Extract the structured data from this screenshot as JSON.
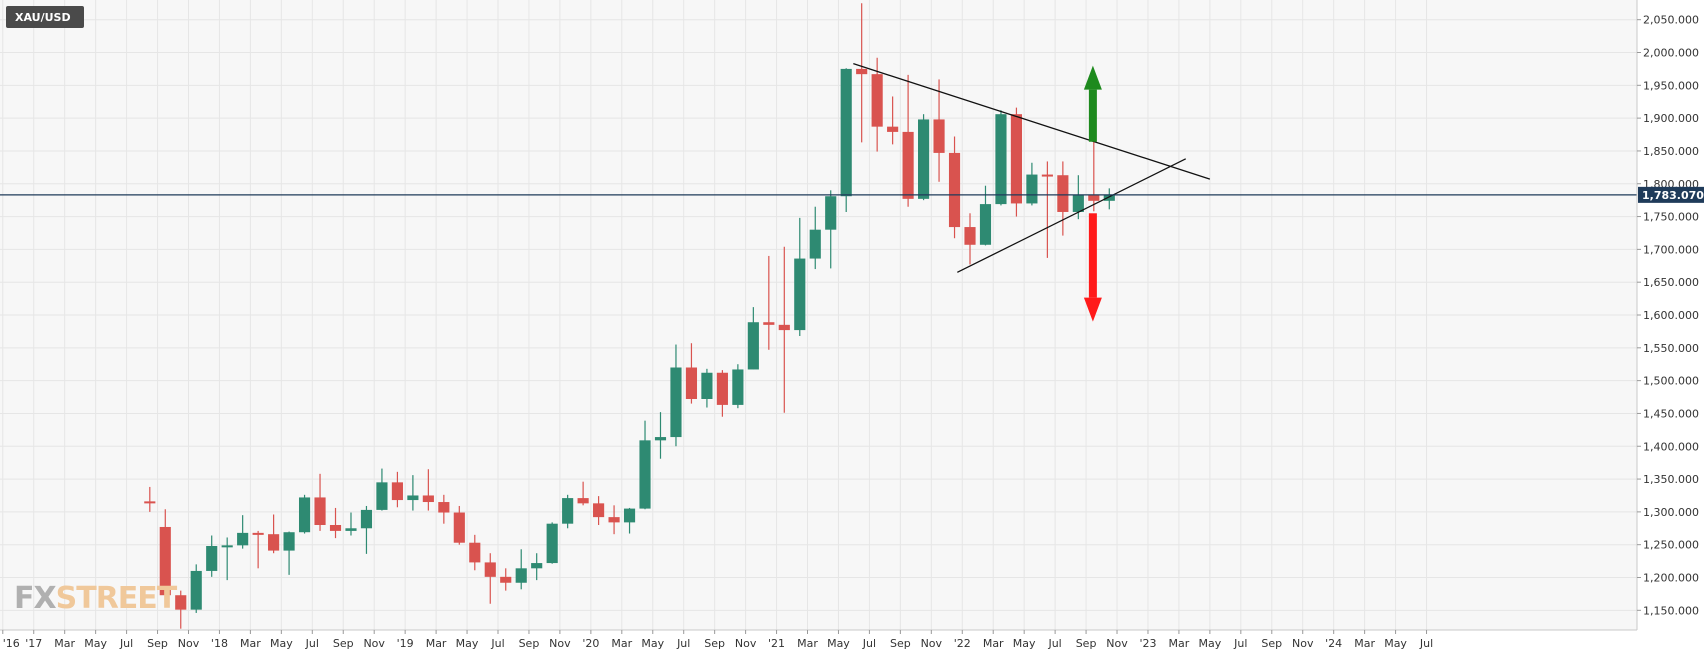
{
  "symbol": "XAU/USD",
  "watermark": {
    "left": "FX",
    "right": "STREET"
  },
  "colors": {
    "up": "#2e8a72",
    "down": "#d9534f",
    "grid": "#e6e6e6",
    "plot_bg": "#f7f7f7",
    "price_line": "#1f3b5a",
    "arrow_up": "#1e8a1e",
    "arrow_down": "#ff1a1a",
    "trendline": "#111111",
    "watermark_left": "#b0b0b0",
    "watermark_right": "#f0c89a"
  },
  "chart_data": {
    "type": "candlestick",
    "title": "XAU/USD",
    "timeframe": "monthly",
    "ylim": [
      1120,
      2080
    ],
    "xlim": [
      2015.985,
      2024.8
    ],
    "y_ticks": [
      "2,050.000",
      "2,000.000",
      "1,950.000",
      "1,900.000",
      "1,850.000",
      "1,800.000",
      "1,750.000",
      "1,700.000",
      "1,650.000",
      "1,600.000",
      "1,550.000",
      "1,500.000",
      "1,450.000",
      "1,400.000",
      "1,350.000",
      "1,300.000",
      "1,250.000",
      "1,200.000",
      "1,150.000"
    ],
    "y_tick_values": [
      2050,
      2000,
      1950,
      1900,
      1850,
      1800,
      1750,
      1700,
      1650,
      1600,
      1550,
      1500,
      1450,
      1400,
      1350,
      1300,
      1250,
      1200,
      1150
    ],
    "x_ticks": [
      "'16",
      "'17",
      "Mar",
      "May",
      "Jul",
      "Sep",
      "Nov",
      "'18",
      "Mar",
      "May",
      "Jul",
      "Sep",
      "Nov",
      "'19",
      "Mar",
      "May",
      "Jul",
      "Sep",
      "Nov",
      "'20",
      "Mar",
      "May",
      "Jul",
      "Sep",
      "Nov",
      "'21",
      "Mar",
      "May",
      "Jul",
      "Sep",
      "Nov",
      "'22",
      "Mar",
      "May",
      "Jul",
      "Sep",
      "Nov",
      "'23",
      "Mar",
      "May",
      "Jul",
      "Sep",
      "Nov",
      "'24",
      "Mar",
      "May",
      "Jul"
    ],
    "current_price": 1783.07,
    "current_price_label": "1,783.070",
    "candles": [
      {
        "t": "2016-10",
        "o": 1316,
        "h": 1338,
        "l": 1300,
        "c": 1313
      },
      {
        "t": "2016-11",
        "o": 1277,
        "h": 1304,
        "l": 1171,
        "c": 1173
      },
      {
        "t": "2016-12",
        "o": 1173,
        "h": 1180,
        "l": 1122,
        "c": 1151
      },
      {
        "t": "2017-01",
        "o": 1151,
        "h": 1220,
        "l": 1146,
        "c": 1210
      },
      {
        "t": "2017-02",
        "o": 1210,
        "h": 1264,
        "l": 1201,
        "c": 1248
      },
      {
        "t": "2017-03",
        "o": 1248,
        "h": 1261,
        "l": 1196,
        "c": 1249
      },
      {
        "t": "2017-04",
        "o": 1249,
        "h": 1295,
        "l": 1244,
        "c": 1268
      },
      {
        "t": "2017-05",
        "o": 1268,
        "h": 1271,
        "l": 1214,
        "c": 1266
      },
      {
        "t": "2017-06",
        "o": 1266,
        "h": 1296,
        "l": 1237,
        "c": 1241
      },
      {
        "t": "2017-07",
        "o": 1241,
        "h": 1270,
        "l": 1204,
        "c": 1269
      },
      {
        "t": "2017-08",
        "o": 1269,
        "h": 1326,
        "l": 1267,
        "c": 1322
      },
      {
        "t": "2017-09",
        "o": 1322,
        "h": 1358,
        "l": 1271,
        "c": 1280
      },
      {
        "t": "2017-10",
        "o": 1280,
        "h": 1306,
        "l": 1260,
        "c": 1271
      },
      {
        "t": "2017-11",
        "o": 1271,
        "h": 1299,
        "l": 1264,
        "c": 1275
      },
      {
        "t": "2017-12",
        "o": 1275,
        "h": 1309,
        "l": 1236,
        "c": 1303
      },
      {
        "t": "2018-01",
        "o": 1303,
        "h": 1366,
        "l": 1302,
        "c": 1345
      },
      {
        "t": "2018-02",
        "o": 1345,
        "h": 1361,
        "l": 1307,
        "c": 1318
      },
      {
        "t": "2018-03",
        "o": 1318,
        "h": 1356,
        "l": 1302,
        "c": 1325
      },
      {
        "t": "2018-04",
        "o": 1325,
        "h": 1365,
        "l": 1302,
        "c": 1315
      },
      {
        "t": "2018-05",
        "o": 1315,
        "h": 1326,
        "l": 1282,
        "c": 1299
      },
      {
        "t": "2018-06",
        "o": 1299,
        "h": 1309,
        "l": 1250,
        "c": 1253
      },
      {
        "t": "2018-07",
        "o": 1253,
        "h": 1265,
        "l": 1211,
        "c": 1223
      },
      {
        "t": "2018-08",
        "o": 1223,
        "h": 1237,
        "l": 1160,
        "c": 1201
      },
      {
        "t": "2018-09",
        "o": 1201,
        "h": 1214,
        "l": 1180,
        "c": 1192
      },
      {
        "t": "2018-10",
        "o": 1192,
        "h": 1243,
        "l": 1182,
        "c": 1214
      },
      {
        "t": "2018-11",
        "o": 1214,
        "h": 1237,
        "l": 1196,
        "c": 1222
      },
      {
        "t": "2018-12",
        "o": 1222,
        "h": 1284,
        "l": 1221,
        "c": 1282
      },
      {
        "t": "2019-01",
        "o": 1282,
        "h": 1326,
        "l": 1275,
        "c": 1321
      },
      {
        "t": "2019-02",
        "o": 1321,
        "h": 1346,
        "l": 1310,
        "c": 1313
      },
      {
        "t": "2019-03",
        "o": 1313,
        "h": 1324,
        "l": 1280,
        "c": 1292
      },
      {
        "t": "2019-04",
        "o": 1292,
        "h": 1310,
        "l": 1266,
        "c": 1284
      },
      {
        "t": "2019-05",
        "o": 1284,
        "h": 1306,
        "l": 1267,
        "c": 1305
      },
      {
        "t": "2019-06",
        "o": 1305,
        "h": 1439,
        "l": 1304,
        "c": 1409
      },
      {
        "t": "2019-07",
        "o": 1409,
        "h": 1452,
        "l": 1381,
        "c": 1414
      },
      {
        "t": "2019-08",
        "o": 1414,
        "h": 1555,
        "l": 1400,
        "c": 1520
      },
      {
        "t": "2019-09",
        "o": 1520,
        "h": 1557,
        "l": 1465,
        "c": 1472
      },
      {
        "t": "2019-10",
        "o": 1472,
        "h": 1518,
        "l": 1459,
        "c": 1512
      },
      {
        "t": "2019-11",
        "o": 1512,
        "h": 1516,
        "l": 1445,
        "c": 1463
      },
      {
        "t": "2019-12",
        "o": 1463,
        "h": 1525,
        "l": 1458,
        "c": 1517
      },
      {
        "t": "2020-01",
        "o": 1517,
        "h": 1612,
        "l": 1517,
        "c": 1589
      },
      {
        "t": "2020-02",
        "o": 1589,
        "h": 1690,
        "l": 1547,
        "c": 1585
      },
      {
        "t": "2020-03",
        "o": 1585,
        "h": 1704,
        "l": 1451,
        "c": 1577
      },
      {
        "t": "2020-04",
        "o": 1577,
        "h": 1748,
        "l": 1568,
        "c": 1686
      },
      {
        "t": "2020-05",
        "o": 1686,
        "h": 1765,
        "l": 1670,
        "c": 1730
      },
      {
        "t": "2020-06",
        "o": 1730,
        "h": 1790,
        "l": 1671,
        "c": 1781
      },
      {
        "t": "2020-07",
        "o": 1781,
        "h": 1976,
        "l": 1757,
        "c": 1975
      },
      {
        "t": "2020-08",
        "o": 1975,
        "h": 2075,
        "l": 1863,
        "c": 1967
      },
      {
        "t": "2020-09",
        "o": 1967,
        "h": 1992,
        "l": 1849,
        "c": 1887
      },
      {
        "t": "2020-10",
        "o": 1887,
        "h": 1933,
        "l": 1860,
        "c": 1879
      },
      {
        "t": "2020-11",
        "o": 1879,
        "h": 1966,
        "l": 1765,
        "c": 1777
      },
      {
        "t": "2020-12",
        "o": 1777,
        "h": 1906,
        "l": 1775,
        "c": 1898
      },
      {
        "t": "2021-01",
        "o": 1898,
        "h": 1959,
        "l": 1803,
        "c": 1847
      },
      {
        "t": "2021-02",
        "o": 1847,
        "h": 1872,
        "l": 1717,
        "c": 1734
      },
      {
        "t": "2021-03",
        "o": 1734,
        "h": 1755,
        "l": 1677,
        "c": 1707
      },
      {
        "t": "2021-04",
        "o": 1707,
        "h": 1797,
        "l": 1706,
        "c": 1769
      },
      {
        "t": "2021-05",
        "o": 1769,
        "h": 1912,
        "l": 1767,
        "c": 1906
      },
      {
        "t": "2021-06",
        "o": 1906,
        "h": 1916,
        "l": 1750,
        "c": 1770
      },
      {
        "t": "2021-07",
        "o": 1770,
        "h": 1832,
        "l": 1767,
        "c": 1814
      },
      {
        "t": "2021-08",
        "o": 1814,
        "h": 1834,
        "l": 1687,
        "c": 1813
      },
      {
        "t": "2021-09",
        "o": 1813,
        "h": 1834,
        "l": 1721,
        "c": 1757
      },
      {
        "t": "2021-10",
        "o": 1757,
        "h": 1813,
        "l": 1746,
        "c": 1783
      },
      {
        "t": "2021-11",
        "o": 1783,
        "h": 1877,
        "l": 1758,
        "c": 1774
      },
      {
        "t": "2021-12",
        "o": 1774,
        "h": 1793,
        "l": 1761,
        "c": 1783
      }
    ],
    "annotations": {
      "upper_trendline": {
        "from": {
          "t": 2020.58,
          "y": 1983
        },
        "to": {
          "t": 2022.5,
          "y": 1807
        }
      },
      "lower_trendline": {
        "from": {
          "t": 2021.14,
          "y": 1665
        },
        "to": {
          "t": 2022.37,
          "y": 1838
        }
      },
      "arrow_up": {
        "t": 2021.87,
        "from_y": 1864,
        "to_y": 1980
      },
      "arrow_down": {
        "t": 2021.87,
        "from_y": 1755,
        "to_y": 1590
      }
    }
  }
}
